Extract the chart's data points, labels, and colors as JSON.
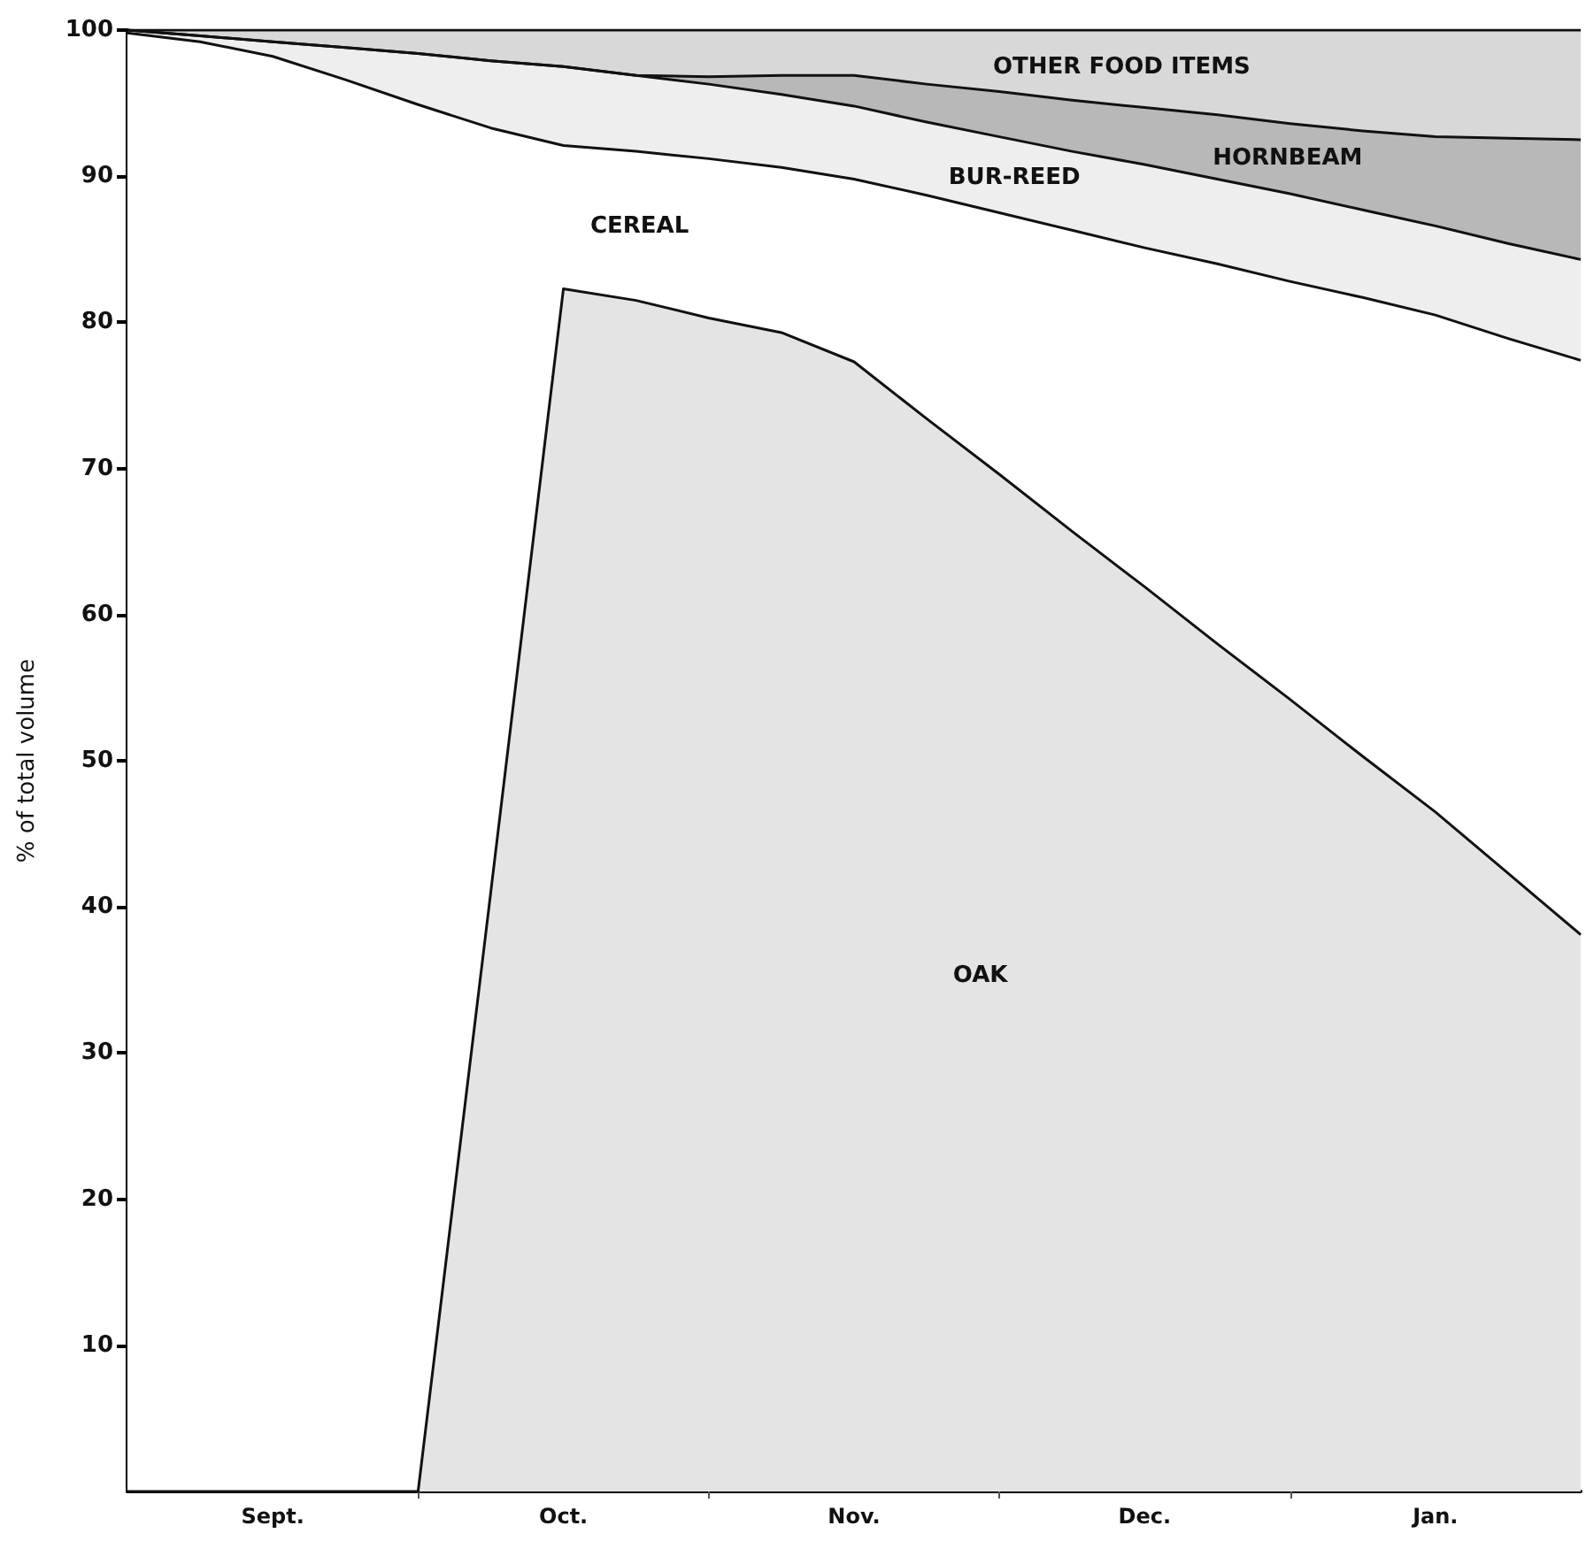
{
  "chart_data": {
    "type": "area",
    "stacked": true,
    "ylabel": "% of total volume",
    "categories": [
      null,
      null,
      "Sept.",
      null,
      null,
      null,
      "Oct.",
      null,
      null,
      null,
      "Nov.",
      null,
      null,
      null,
      "Dec.",
      null,
      null,
      null,
      "Jan.",
      null,
      null
    ],
    "series": [
      {
        "name": "OAK",
        "color": "#e4e4e4",
        "values": [
          0,
          0,
          0,
          0,
          0,
          41,
          82.3,
          81.5,
          80.3,
          79.3,
          77.3,
          73.4,
          69.6,
          65.7,
          61.9,
          58.0,
          54.2,
          50.3,
          46.5,
          42.3,
          38.1
        ]
      },
      {
        "name": "CEREAL",
        "color": "#ffffff",
        "values": [
          99.8,
          99.2,
          98.2,
          96.6,
          94.9,
          52.3,
          9.8,
          10.2,
          10.9,
          11.3,
          12.5,
          15.3,
          17.9,
          20.6,
          23.2,
          26.0,
          28.6,
          31.4,
          34.0,
          36.6,
          39.3
        ]
      },
      {
        "name": "BUR-REED",
        "color": "#eeeeee",
        "values": [
          0.2,
          0.4,
          1.0,
          2.2,
          3.5,
          4.6,
          5.4,
          5.2,
          5.1,
          5.0,
          5.0,
          5.0,
          5.2,
          5.4,
          5.7,
          5.8,
          6.0,
          6.0,
          6.1,
          6.5,
          6.9
        ]
      },
      {
        "name": "HORNBEAM",
        "color": "#b8b8b8",
        "values": [
          0,
          0,
          0,
          0,
          0,
          0,
          0,
          0,
          0.5,
          1.3,
          2.1,
          2.6,
          3.1,
          3.5,
          3.9,
          4.4,
          4.8,
          5.4,
          6.1,
          7.2,
          8.2
        ]
      },
      {
        "name": "OTHER FOOD ITEMS",
        "color": "#d8d8d8",
        "values": [
          0,
          0.4,
          0.8,
          1.2,
          1.6,
          2.1,
          2.5,
          3.1,
          3.2,
          3.1,
          3.1,
          3.7,
          4.2,
          4.8,
          5.3,
          5.8,
          6.4,
          6.9,
          7.3,
          7.4,
          7.5
        ]
      }
    ],
    "ylim": [
      0,
      100
    ],
    "yticks": [
      10,
      20,
      30,
      40,
      50,
      60,
      70,
      80,
      90,
      100
    ],
    "grid": false,
    "legend": false,
    "line_style": "solid",
    "marker": "none"
  }
}
